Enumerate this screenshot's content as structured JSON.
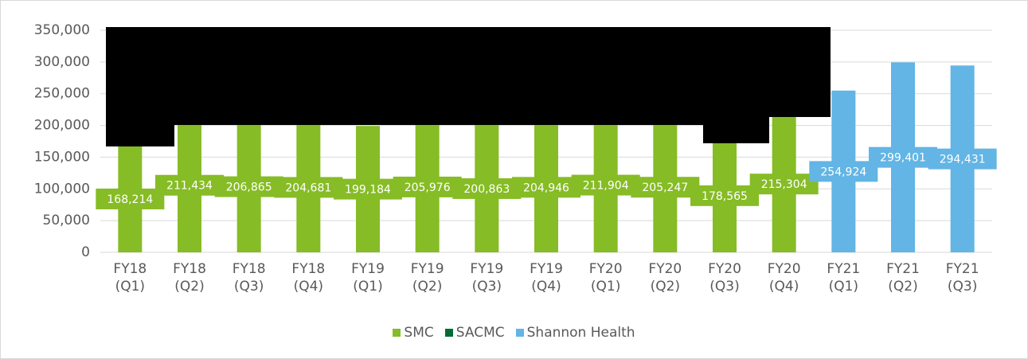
{
  "chart_data": {
    "type": "bar",
    "categories": [
      "FY18 (Q1)",
      "FY18 (Q2)",
      "FY18 (Q3)",
      "FY18 (Q4)",
      "FY19 (Q1)",
      "FY19 (Q2)",
      "FY19 (Q3)",
      "FY19 (Q4)",
      "FY20 (Q1)",
      "FY20 (Q2)",
      "FY20 (Q3)",
      "FY20 (Q4)",
      "FY21 (Q1)",
      "FY21 (Q2)",
      "FY21 (Q3)"
    ],
    "series": [
      {
        "name": "SMC",
        "color": "#86bc25",
        "values": [
          168214,
          211434,
          206865,
          204681,
          199184,
          205976,
          200863,
          204946,
          211904,
          205247,
          178565,
          215304,
          null,
          null,
          null
        ],
        "value_labels": [
          "168,214",
          "211,434",
          "206,865",
          "204,681",
          "199,184",
          "205,976",
          "200,863",
          "204,946",
          "211,904",
          "205,247",
          "178,565",
          "215,304",
          null,
          null,
          null
        ]
      },
      {
        "name": "SACMC",
        "color": "#046a38",
        "values": [
          null,
          null,
          null,
          null,
          null,
          null,
          null,
          null,
          null,
          null,
          null,
          null,
          null,
          null,
          null
        ]
      },
      {
        "name": "Shannon Health",
        "color": "#62b5e5",
        "values": [
          null,
          null,
          null,
          null,
          null,
          null,
          null,
          null,
          null,
          null,
          null,
          null,
          254924,
          299401,
          294431
        ],
        "value_labels": [
          null,
          null,
          null,
          null,
          null,
          null,
          null,
          null,
          null,
          null,
          null,
          null,
          "254,924",
          "299,401",
          "294,431"
        ]
      }
    ],
    "ylim": [
      0,
      350000
    ],
    "yticks": [
      0,
      {
        "value": 50000,
        "label": "50,000"
      },
      {
        "value": 100000,
        "label": "100,000"
      },
      {
        "value": 150000,
        "label": "150,000"
      },
      {
        "value": 200000,
        "label": "200,000"
      },
      {
        "value": 250000,
        "label": "250,000"
      },
      {
        "value": 300000,
        "label": "300,000"
      },
      {
        "value": 350000,
        "label": "350,000"
      }
    ],
    "grid": true,
    "legend": "bottom"
  }
}
